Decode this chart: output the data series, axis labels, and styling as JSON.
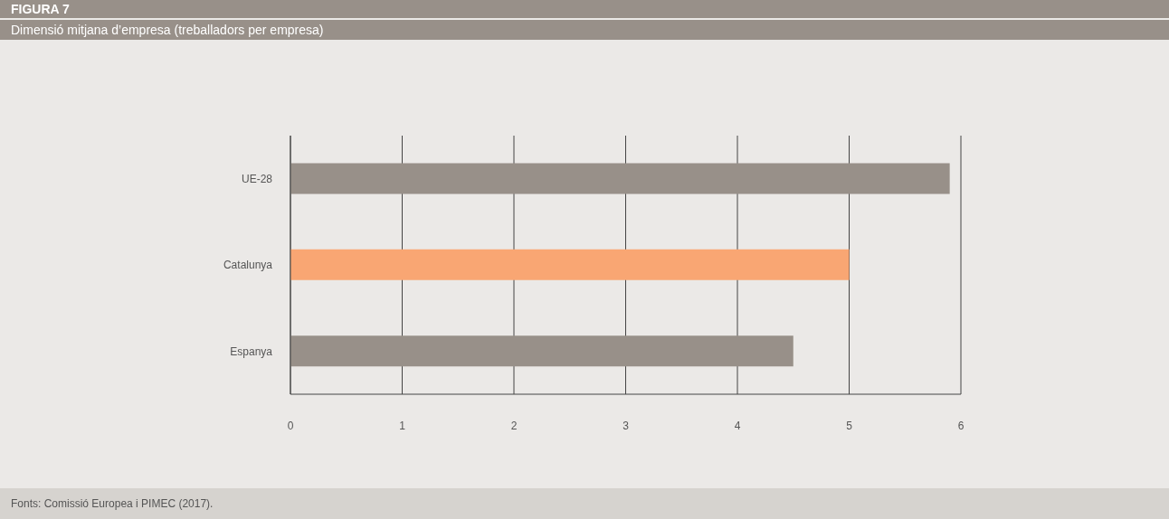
{
  "chart_data": {
    "type": "bar",
    "orientation": "horizontal",
    "title": "FIGURA 7",
    "subtitle": "Dimensió mitjana d’empresa (treballadors per empresa)",
    "categories": [
      "UE-28",
      "Catalunya",
      "Espanya"
    ],
    "values": [
      5.9,
      5.0,
      4.5
    ],
    "colors": [
      "#989089",
      "#f9a673",
      "#989089"
    ],
    "xlim": [
      0,
      6
    ],
    "xticks": [
      0,
      1,
      2,
      3,
      4,
      5,
      6
    ],
    "grid": "x",
    "annotations": [
      "Fonts: Comissió Europea i PIMEC (2017)."
    ]
  }
}
